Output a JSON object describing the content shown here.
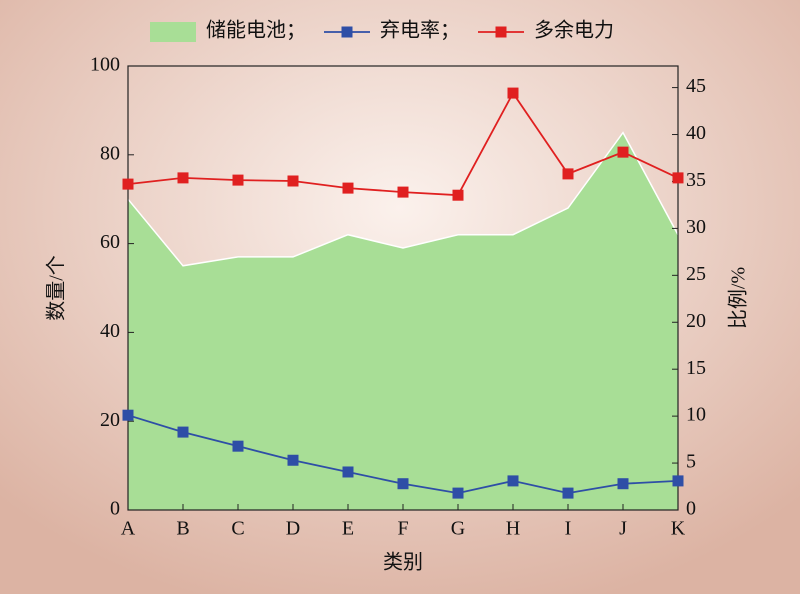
{
  "chart_data": {
    "type": "combo",
    "x_label": "类别",
    "y_label": "数量/个",
    "y2_label": "比例/%",
    "categories": [
      "A",
      "B",
      "C",
      "D",
      "E",
      "F",
      "G",
      "H",
      "I",
      "J",
      "K"
    ],
    "series": [
      {
        "name": "储能电池；",
        "type": "area",
        "axis": "y",
        "color": "#a8de96",
        "values": [
          70,
          55,
          57,
          57,
          62,
          59,
          62,
          62,
          68,
          85,
          62
        ]
      },
      {
        "name": "弃电率；",
        "type": "line",
        "axis": "y2",
        "color": "#2e4ea6",
        "values": [
          10.1,
          8.3,
          6.8,
          5.3,
          4.05,
          2.8,
          1.8,
          3.1,
          1.8,
          2.8,
          3.1
        ]
      },
      {
        "name": "多余电力",
        "type": "line",
        "axis": "y",
        "color": "#e02020",
        "values": [
          73.4,
          74.8,
          74.3,
          74.1,
          72.5,
          71.6,
          70.9,
          93.9,
          75.7,
          80.6,
          74.8
        ]
      }
    ],
    "ylim": [
      0,
      100
    ],
    "yticks": [
      0,
      20,
      40,
      60,
      80,
      100
    ],
    "y2lim": [
      0,
      47.3
    ],
    "y2ticks": [
      0,
      5,
      10,
      15,
      20,
      25,
      30,
      35,
      40,
      45
    ],
    "legend": "top"
  }
}
